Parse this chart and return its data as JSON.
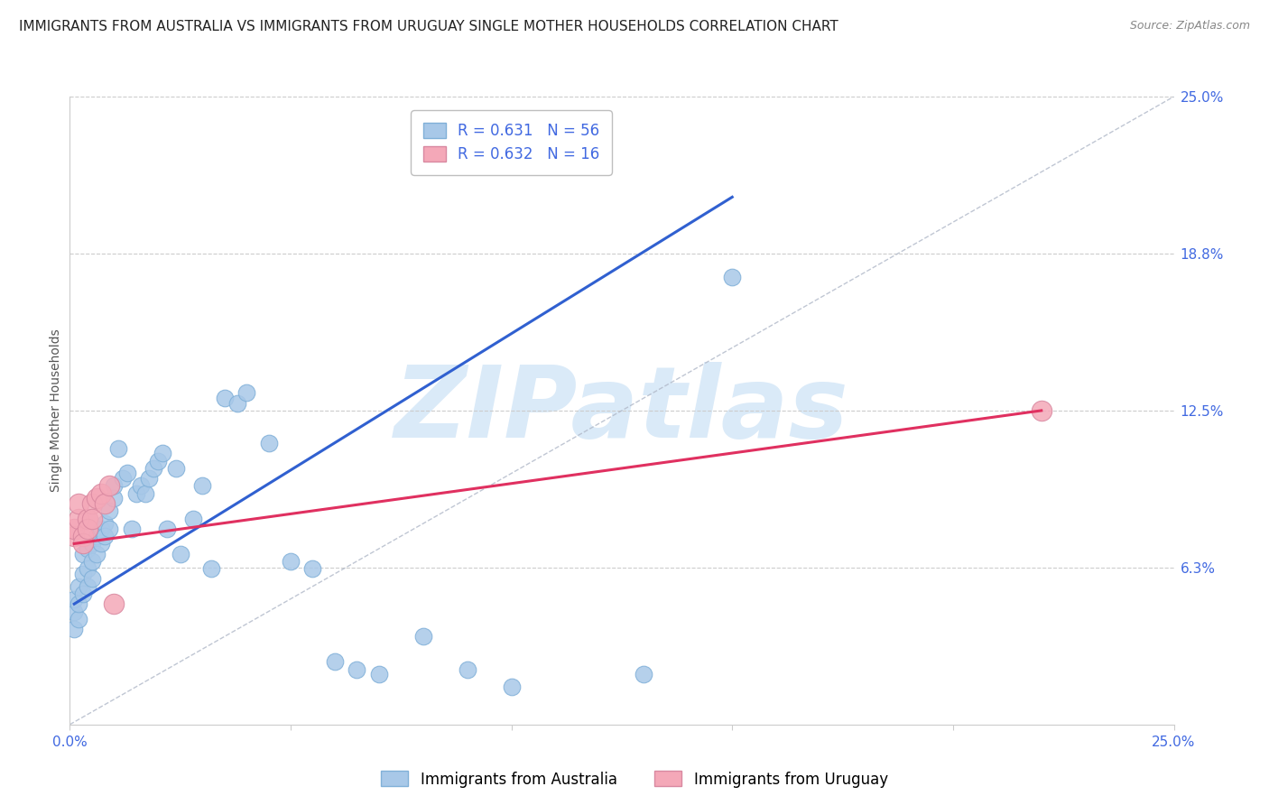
{
  "title": "IMMIGRANTS FROM AUSTRALIA VS IMMIGRANTS FROM URUGUAY SINGLE MOTHER HOUSEHOLDS CORRELATION CHART",
  "source": "Source: ZipAtlas.com",
  "ylabel": "Single Mother Households",
  "xlim": [
    0.0,
    0.25
  ],
  "ylim": [
    0.0,
    0.25
  ],
  "ytick_values": [
    0.0,
    0.0625,
    0.125,
    0.1875,
    0.25
  ],
  "ytick_labels": [
    "",
    "6.3%",
    "12.5%",
    "18.8%",
    "25.0%"
  ],
  "australia_color": "#a8c8e8",
  "uruguay_color": "#f4a8b8",
  "australia_line_color": "#3060d0",
  "uruguay_line_color": "#e03060",
  "legend_R_australia": "R = 0.631",
  "legend_N_australia": "N = 56",
  "legend_R_uruguay": "R = 0.632",
  "legend_N_uruguay": "N = 16",
  "watermark": "ZIPatlas",
  "watermark_color": "#daeaf8",
  "background_color": "#ffffff",
  "title_fontsize": 11,
  "axis_label_fontsize": 10,
  "tick_fontsize": 11,
  "legend_fontsize": 12,
  "aus_x": [
    0.001,
    0.001,
    0.001,
    0.002,
    0.002,
    0.002,
    0.003,
    0.003,
    0.003,
    0.004,
    0.004,
    0.004,
    0.005,
    0.005,
    0.005,
    0.006,
    0.006,
    0.007,
    0.007,
    0.008,
    0.008,
    0.009,
    0.009,
    0.01,
    0.01,
    0.011,
    0.012,
    0.013,
    0.014,
    0.015,
    0.016,
    0.017,
    0.018,
    0.019,
    0.02,
    0.021,
    0.022,
    0.024,
    0.025,
    0.028,
    0.03,
    0.032,
    0.035,
    0.038,
    0.04,
    0.045,
    0.05,
    0.055,
    0.06,
    0.065,
    0.07,
    0.08,
    0.09,
    0.1,
    0.13,
    0.15
  ],
  "aus_y": [
    0.045,
    0.05,
    0.038,
    0.042,
    0.055,
    0.048,
    0.06,
    0.052,
    0.068,
    0.055,
    0.062,
    0.07,
    0.065,
    0.058,
    0.072,
    0.068,
    0.075,
    0.072,
    0.078,
    0.08,
    0.075,
    0.085,
    0.078,
    0.09,
    0.095,
    0.11,
    0.098,
    0.1,
    0.078,
    0.092,
    0.095,
    0.092,
    0.098,
    0.102,
    0.105,
    0.108,
    0.078,
    0.102,
    0.068,
    0.082,
    0.095,
    0.062,
    0.13,
    0.128,
    0.132,
    0.112,
    0.065,
    0.062,
    0.025,
    0.022,
    0.02,
    0.035,
    0.022,
    0.015,
    0.02,
    0.178
  ],
  "uru_x": [
    0.001,
    0.001,
    0.002,
    0.002,
    0.003,
    0.003,
    0.004,
    0.004,
    0.005,
    0.005,
    0.006,
    0.007,
    0.008,
    0.009,
    0.01,
    0.22
  ],
  "uru_y": [
    0.075,
    0.078,
    0.082,
    0.088,
    0.075,
    0.072,
    0.082,
    0.078,
    0.088,
    0.082,
    0.09,
    0.092,
    0.088,
    0.095,
    0.048,
    0.125
  ],
  "aus_line_x": [
    0.001,
    0.15
  ],
  "aus_line_y": [
    0.048,
    0.21
  ],
  "uru_line_x": [
    0.001,
    0.22
  ],
  "uru_line_y": [
    0.072,
    0.125
  ]
}
